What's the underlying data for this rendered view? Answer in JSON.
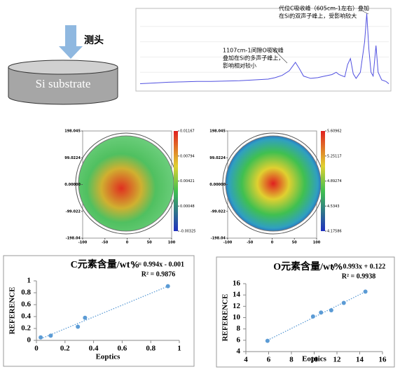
{
  "diagram": {
    "probe_label": "测头",
    "substrate_label": "Si substrate"
  },
  "chart_data": [
    {
      "type": "line",
      "xlim": [
        2200,
        450
      ],
      "ylim": [
        0,
        1
      ],
      "color": "#5050e0",
      "x": [
        2200,
        2100,
        2000,
        1900,
        1800,
        1700,
        1600,
        1500,
        1400,
        1300,
        1250,
        1200,
        1150,
        1107,
        1080,
        1050,
        1000,
        950,
        900,
        850,
        820,
        800,
        760,
        740,
        720,
        700,
        680,
        650,
        620,
        605,
        590,
        575,
        560,
        540,
        525,
        500,
        470,
        450
      ],
      "values": [
        0.05,
        0.06,
        0.07,
        0.075,
        0.08,
        0.08,
        0.085,
        0.09,
        0.1,
        0.11,
        0.13,
        0.16,
        0.22,
        0.33,
        0.25,
        0.15,
        0.12,
        0.13,
        0.15,
        0.17,
        0.2,
        0.17,
        0.14,
        0.3,
        0.38,
        0.18,
        0.12,
        0.2,
        0.6,
        0.97,
        0.5,
        0.2,
        0.15,
        0.55,
        0.2,
        0.1,
        0.08,
        0.05
      ],
      "annotations": [
        {
          "lines": [
            "代位C吸收峰（605cm-1左右）叠加",
            "在Si的双声子峰上，受影响较大"
          ]
        },
        {
          "lines": [
            "1107cm-1间隙O吸收峰",
            "叠加在Si的多声子峰上，",
            "影响相对较小"
          ]
        }
      ]
    },
    {
      "type": "heatmap",
      "yticks": [
        198.045,
        99.0224,
        {
          "value": 0,
          "label": "0.00000"
        },
        -99.022,
        -198.04
      ],
      "xticks": [
        -100,
        -50,
        0,
        50,
        100
      ],
      "colorbar_ticks": [
        0.01167,
        0.00794,
        0.00421,
        0.00048,
        -0.00325
      ]
    },
    {
      "type": "heatmap",
      "yticks": [
        198.045,
        99.0224,
        {
          "value": 0,
          "label": "0.00000"
        },
        -99.022,
        -198.04
      ],
      "xticks": [
        -100,
        -50,
        0,
        50,
        100
      ],
      "colorbar_ticks": [
        5.60962,
        5.25117,
        4.89274,
        4.5343,
        4.17586
      ]
    },
    {
      "type": "scatter",
      "title": "C元素含量/wt%",
      "equation": "y = 0.994x - 0.001",
      "r_squared": "R² = 0.9876",
      "x_label": "Eoptics",
      "y_label": "REFERENCE",
      "color": "#5b9bd5",
      "x": [
        0.03,
        0.1,
        0.29,
        0.34,
        0.92
      ],
      "values": [
        0.05,
        0.08,
        0.23,
        0.38,
        0.91
      ],
      "xlim": [
        0,
        1
      ],
      "ylim": [
        0,
        1
      ],
      "xticks": [
        0,
        0.2,
        0.4,
        0.6,
        0.8,
        1
      ],
      "yticks": [
        0,
        0.2,
        0.4,
        0.6,
        0.8,
        1
      ]
    },
    {
      "type": "scatter",
      "title": "O元素含量/wt%",
      "equation": "y = 0.993x + 0.122",
      "r_squared": "R² = 0.9938",
      "x_label": "Eoptics",
      "y_label": "REFERENCE",
      "color": "#5b9bd5",
      "x": [
        5.9,
        9.9,
        10.6,
        11.5,
        12.6,
        14.5
      ],
      "values": [
        5.9,
        10.2,
        10.9,
        11.3,
        12.6,
        14.6
      ],
      "xlim": [
        4,
        16
      ],
      "ylim": [
        4,
        16
      ],
      "xticks": [
        4,
        6,
        8,
        10,
        12,
        14,
        16
      ],
      "yticks": [
        4,
        6,
        8,
        10,
        12,
        14,
        16
      ]
    }
  ]
}
